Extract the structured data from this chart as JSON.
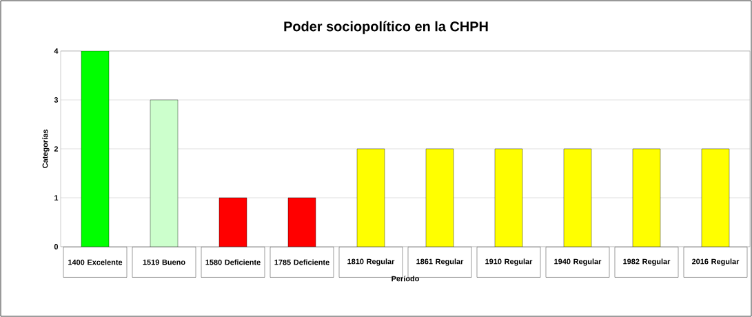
{
  "chart_data": {
    "type": "bar",
    "title": "Poder sociopolítico  en la CHPH",
    "xlabel": "Período",
    "ylabel": "Categorías",
    "categories": [
      "1400 Excelente",
      "1519 Bueno",
      "1580 Deficiente",
      "1785 Deficiente",
      "1810 Regular",
      "1861 Regular",
      "1910 Regular",
      "1940 Regular",
      "1982 Regular",
      "2016 Regular"
    ],
    "values": [
      4,
      3,
      1,
      1,
      2,
      2,
      2,
      2,
      2,
      2
    ],
    "colors": [
      "#00ff00",
      "#ccffcc",
      "#ff0000",
      "#ff0000",
      "#ffff00",
      "#ffff00",
      "#ffff00",
      "#ffff00",
      "#ffff00",
      "#ffff00"
    ],
    "ylim": [
      0,
      4
    ],
    "yticks": [
      0,
      1,
      2,
      3,
      4
    ],
    "grid": "y"
  }
}
